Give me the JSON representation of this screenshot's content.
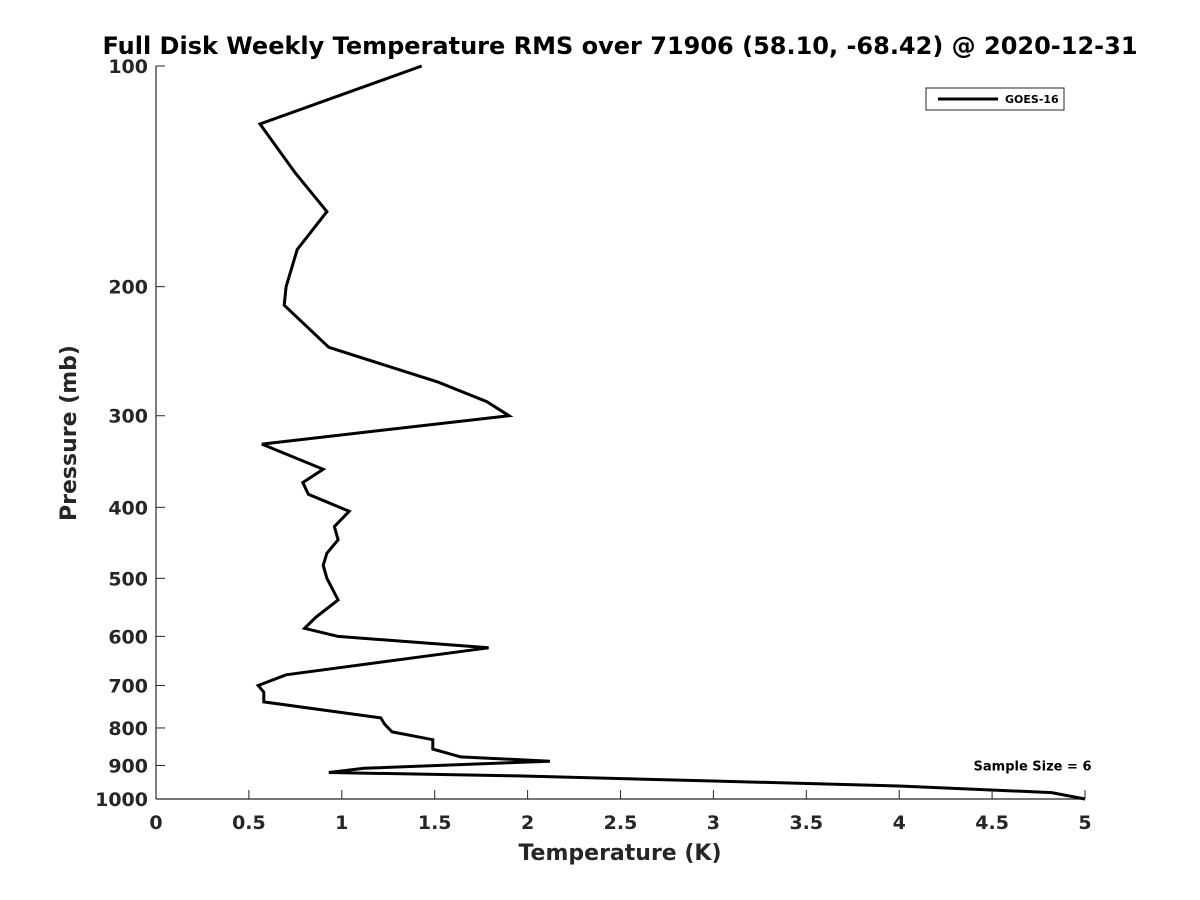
{
  "chart_data": {
    "type": "line",
    "title": "Full Disk Weekly Temperature RMS over 71906 (58.10, -68.42) @ 2020-12-31",
    "xlabel": "Temperature (K)",
    "ylabel": "Pressure (mb)",
    "xlim": [
      0,
      5
    ],
    "ylim": [
      100,
      1000
    ],
    "yscale": "log",
    "yreversed": true,
    "grid": false,
    "legend_position": "top-right",
    "x_ticks": [
      0,
      0.5,
      1,
      1.5,
      2,
      2.5,
      3,
      3.5,
      4,
      4.5,
      5
    ],
    "x_tick_labels": [
      "0",
      "0.5",
      "1",
      "1.5",
      "2",
      "2.5",
      "3",
      "3.5",
      "4",
      "4.5",
      "5"
    ],
    "y_ticks": [
      100,
      200,
      300,
      400,
      500,
      600,
      700,
      800,
      900,
      1000
    ],
    "y_tick_labels": [
      "100",
      "200",
      "300",
      "400",
      "500",
      "600",
      "700",
      "800",
      "900",
      "1000"
    ],
    "series": [
      {
        "name": "GOES-16",
        "color": "#000000",
        "x": [
          1.43,
          0.56,
          0.75,
          0.92,
          0.76,
          0.7,
          0.69,
          0.93,
          1.52,
          1.78,
          1.9,
          0.57,
          0.9,
          0.79,
          0.82,
          1.04,
          0.96,
          0.98,
          0.92,
          0.9,
          0.92,
          0.98,
          0.86,
          0.8,
          0.98,
          1.79,
          0.7,
          0.55,
          0.58,
          0.58,
          1.21,
          1.23,
          1.27,
          1.49,
          1.49,
          1.64,
          2.12,
          1.12,
          0.93,
          1.95,
          3.0,
          4.0,
          4.82,
          5.0
        ],
        "y": [
          100,
          120,
          140,
          158,
          178,
          200,
          212,
          242,
          270,
          287,
          300,
          328,
          355,
          370,
          384,
          405,
          425,
          443,
          462,
          480,
          500,
          535,
          565,
          585,
          600,
          622,
          677,
          700,
          715,
          737,
          775,
          790,
          810,
          830,
          855,
          876,
          888,
          908,
          920,
          930,
          945,
          960,
          980,
          1000
        ]
      }
    ],
    "annotations": [
      {
        "text": "Sample Size = 6",
        "x": 4.4,
        "y": 900
      }
    ]
  }
}
